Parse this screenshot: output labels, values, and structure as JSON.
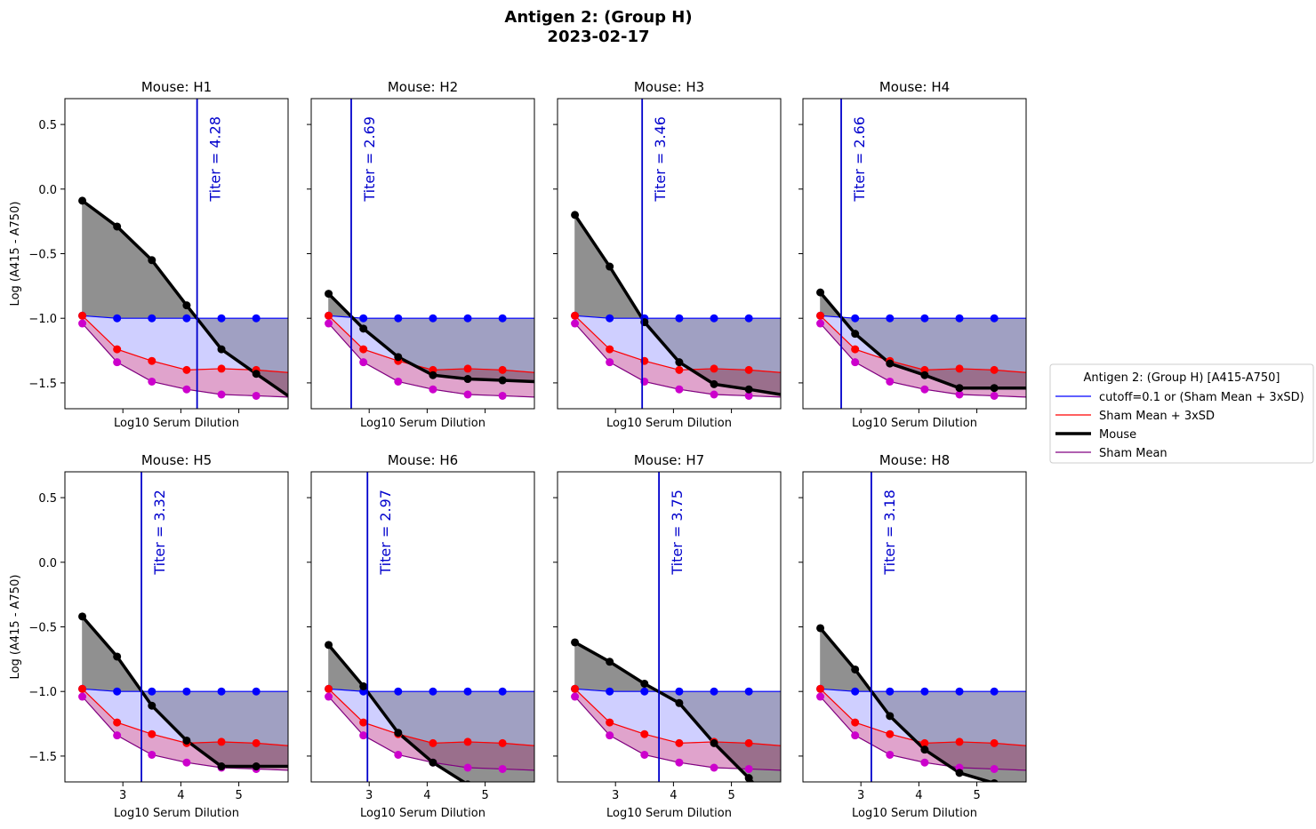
{
  "figure": {
    "title_line1": "Antigen 2: (Group H)",
    "title_line2": "2023-02-17"
  },
  "legend": {
    "title": "Antigen 2: (Group H) [A415-A750]",
    "entries": [
      {
        "label": "cutoff=0.1 or (Sham Mean + 3xSD)",
        "color": "#0000ff"
      },
      {
        "label": "Sham Mean + 3xSD",
        "color": "#ff0000"
      },
      {
        "label": "Mouse",
        "color": "#000000"
      },
      {
        "label": "Sham Mean",
        "color": "#800080"
      }
    ]
  },
  "colors": {
    "cutoff": "#0000ff",
    "cutoff_fill": "#ccccff",
    "sham3sd": "#ff0000",
    "mouse": "#000000",
    "mouse_fill": "#808080",
    "sham_mean": "#800080",
    "sham_mean_marker": "#cc00cc",
    "sham_fill": "#cc66aa",
    "titer_line": "#0000cc"
  },
  "chart_data": {
    "type": "line",
    "layout": "2x4 grid of subplots with shared axes",
    "xlabel": "Log10 Serum Dilution",
    "ylabel": "Log (A415 - A750)",
    "xlim": [
      2.0,
      5.85
    ],
    "ylim": [
      -1.7,
      0.7
    ],
    "xticks": [
      3,
      4,
      5
    ],
    "yticks": [
      0.5,
      0.0,
      -0.5,
      -1.0,
      -1.5
    ],
    "ytick_labels": [
      "0.5",
      "0.0",
      "−0.5",
      "−1.0",
      "−1.5"
    ],
    "x": [
      2.3,
      2.9,
      3.5,
      4.1,
      4.7,
      5.3,
      5.85
    ],
    "marker_count": 6,
    "cutoff": [
      -0.98,
      -1.0,
      -1.0,
      -1.0,
      -1.0,
      -1.0,
      -1.0
    ],
    "sham_mean_plus_3sd": [
      -0.98,
      -1.24,
      -1.33,
      -1.4,
      -1.39,
      -1.4,
      -1.42
    ],
    "sham_mean": [
      -1.04,
      -1.34,
      -1.49,
      -1.55,
      -1.59,
      -1.6,
      -1.61
    ],
    "titer_label_prefix": "Titer = ",
    "subplots": [
      {
        "title": "Mouse: H1",
        "titer": 4.28,
        "titer_label": "4.28",
        "mouse": [
          -0.09,
          -0.29,
          -0.55,
          -0.9,
          -1.24,
          -1.43,
          -1.6
        ]
      },
      {
        "title": "Mouse: H2",
        "titer": 2.69,
        "titer_label": "2.69",
        "mouse": [
          -0.81,
          -1.08,
          -1.3,
          -1.44,
          -1.47,
          -1.48,
          -1.49
        ]
      },
      {
        "title": "Mouse: H3",
        "titer": 3.46,
        "titer_label": "3.46",
        "mouse": [
          -0.2,
          -0.6,
          -1.03,
          -1.34,
          -1.51,
          -1.55,
          -1.59
        ]
      },
      {
        "title": "Mouse: H4",
        "titer": 2.66,
        "titer_label": "2.66",
        "mouse": [
          -0.8,
          -1.12,
          -1.35,
          -1.44,
          -1.54,
          -1.54,
          -1.54
        ]
      },
      {
        "title": "Mouse: H5",
        "titer": 3.32,
        "titer_label": "3.32",
        "mouse": [
          -0.42,
          -0.73,
          -1.11,
          -1.38,
          -1.58,
          -1.58,
          -1.58
        ]
      },
      {
        "title": "Mouse: H6",
        "titer": 2.97,
        "titer_label": "2.97",
        "mouse": [
          -0.64,
          -0.96,
          -1.32,
          -1.55,
          -1.72,
          -1.82,
          -1.95
        ]
      },
      {
        "title": "Mouse: H7",
        "titer": 3.75,
        "titer_label": "3.75",
        "mouse": [
          -0.62,
          -0.77,
          -0.94,
          -1.09,
          -1.4,
          -1.67,
          -1.95
        ]
      },
      {
        "title": "Mouse: H8",
        "titer": 3.18,
        "titer_label": "3.18",
        "mouse": [
          -0.51,
          -0.83,
          -1.19,
          -1.45,
          -1.63,
          -1.71,
          -1.8
        ]
      }
    ],
    "legend_position": "right"
  }
}
